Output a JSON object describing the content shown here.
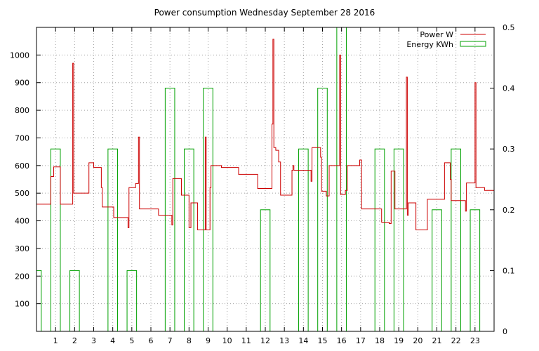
{
  "chart_data": {
    "type": "line",
    "title": "Power consumption Wednesday September 28 2016",
    "xlabel": "",
    "ylabel": "",
    "y2label": "",
    "xlim": [
      0,
      24
    ],
    "ylim": [
      0,
      1100
    ],
    "y2lim": [
      0,
      0.5
    ],
    "xticks": [
      1,
      2,
      3,
      4,
      5,
      6,
      7,
      8,
      9,
      10,
      11,
      12,
      13,
      14,
      15,
      16,
      17,
      18,
      19,
      20,
      21,
      22,
      23
    ],
    "yticks": [
      100,
      200,
      300,
      400,
      500,
      600,
      700,
      800,
      900,
      1000
    ],
    "y2ticks": [
      0,
      0.1,
      0.2,
      0.3,
      0.4,
      0.5
    ],
    "grid": true,
    "legend_position": "top-right",
    "series": [
      {
        "name": "Power W",
        "color": "#cc0000",
        "axis": "y",
        "style": "steps",
        "points": [
          [
            0.0,
            460
          ],
          [
            0.75,
            460
          ],
          [
            0.75,
            560
          ],
          [
            0.9,
            560
          ],
          [
            0.9,
            595
          ],
          [
            1.25,
            595
          ],
          [
            1.25,
            460
          ],
          [
            1.9,
            460
          ],
          [
            1.9,
            970
          ],
          [
            1.95,
            970
          ],
          [
            1.95,
            500
          ],
          [
            2.75,
            500
          ],
          [
            2.75,
            610
          ],
          [
            3.0,
            610
          ],
          [
            3.0,
            593
          ],
          [
            3.4,
            593
          ],
          [
            3.4,
            520
          ],
          [
            3.45,
            520
          ],
          [
            3.45,
            450
          ],
          [
            4.05,
            450
          ],
          [
            4.05,
            412
          ],
          [
            4.8,
            412
          ],
          [
            4.8,
            375
          ],
          [
            4.85,
            375
          ],
          [
            4.85,
            520
          ],
          [
            5.2,
            520
          ],
          [
            5.2,
            535
          ],
          [
            5.35,
            535
          ],
          [
            5.35,
            703
          ],
          [
            5.4,
            703
          ],
          [
            5.4,
            443
          ],
          [
            6.4,
            443
          ],
          [
            6.4,
            420
          ],
          [
            7.1,
            420
          ],
          [
            7.1,
            385
          ],
          [
            7.15,
            385
          ],
          [
            7.15,
            553
          ],
          [
            7.6,
            553
          ],
          [
            7.6,
            493
          ],
          [
            8.0,
            493
          ],
          [
            8.0,
            375
          ],
          [
            8.1,
            375
          ],
          [
            8.1,
            465
          ],
          [
            8.45,
            465
          ],
          [
            8.45,
            367
          ],
          [
            8.85,
            367
          ],
          [
            8.85,
            703
          ],
          [
            8.9,
            703
          ],
          [
            8.9,
            367
          ],
          [
            9.1,
            367
          ],
          [
            9.1,
            520
          ],
          [
            9.15,
            520
          ],
          [
            9.15,
            600
          ],
          [
            9.7,
            600
          ],
          [
            9.7,
            593
          ],
          [
            10.6,
            593
          ],
          [
            10.6,
            568
          ],
          [
            11.6,
            568
          ],
          [
            11.6,
            517
          ],
          [
            12.35,
            517
          ],
          [
            12.35,
            750
          ],
          [
            12.4,
            750
          ],
          [
            12.4,
            1057
          ],
          [
            12.45,
            1057
          ],
          [
            12.45,
            665
          ],
          [
            12.55,
            665
          ],
          [
            12.55,
            655
          ],
          [
            12.7,
            655
          ],
          [
            12.7,
            613
          ],
          [
            12.8,
            613
          ],
          [
            12.8,
            493
          ],
          [
            13.4,
            493
          ],
          [
            13.4,
            583
          ],
          [
            13.45,
            583
          ],
          [
            13.45,
            600
          ],
          [
            13.5,
            600
          ],
          [
            13.5,
            583
          ],
          [
            14.4,
            583
          ],
          [
            14.4,
            543
          ],
          [
            14.45,
            543
          ],
          [
            14.45,
            665
          ],
          [
            14.9,
            665
          ],
          [
            14.9,
            630
          ],
          [
            14.95,
            630
          ],
          [
            14.95,
            507
          ],
          [
            15.2,
            507
          ],
          [
            15.2,
            490
          ],
          [
            15.35,
            490
          ],
          [
            15.35,
            600
          ],
          [
            15.9,
            600
          ],
          [
            15.9,
            1000
          ],
          [
            15.95,
            1000
          ],
          [
            15.95,
            495
          ],
          [
            16.2,
            495
          ],
          [
            16.2,
            510
          ],
          [
            16.3,
            510
          ],
          [
            16.3,
            600
          ],
          [
            16.95,
            600
          ],
          [
            16.95,
            620
          ],
          [
            17.05,
            620
          ],
          [
            17.05,
            443
          ],
          [
            18.1,
            443
          ],
          [
            18.1,
            395
          ],
          [
            18.5,
            395
          ],
          [
            18.5,
            390
          ],
          [
            18.6,
            390
          ],
          [
            18.6,
            580
          ],
          [
            18.8,
            580
          ],
          [
            18.8,
            443
          ],
          [
            19.4,
            443
          ],
          [
            19.4,
            920
          ],
          [
            19.45,
            920
          ],
          [
            19.45,
            420
          ],
          [
            19.5,
            420
          ],
          [
            19.5,
            465
          ],
          [
            19.9,
            465
          ],
          [
            19.9,
            367
          ],
          [
            20.5,
            367
          ],
          [
            20.5,
            478
          ],
          [
            21.4,
            478
          ],
          [
            21.4,
            610
          ],
          [
            21.7,
            610
          ],
          [
            21.7,
            550
          ],
          [
            21.75,
            550
          ],
          [
            21.75,
            473
          ],
          [
            22.5,
            473
          ],
          [
            22.5,
            435
          ],
          [
            22.55,
            435
          ],
          [
            22.55,
            537
          ],
          [
            23.0,
            537
          ],
          [
            23.0,
            900
          ],
          [
            23.05,
            900
          ],
          [
            23.05,
            520
          ],
          [
            23.5,
            520
          ],
          [
            23.5,
            510
          ],
          [
            24.0,
            510
          ]
        ]
      },
      {
        "name": "Energy KWh",
        "color": "#00a000",
        "axis": "y2",
        "style": "boxes",
        "bars": [
          [
            0.0,
            0.25,
            0.1
          ],
          [
            0.75,
            1.25,
            0.3
          ],
          [
            1.75,
            2.25,
            0.1
          ],
          [
            3.75,
            4.25,
            0.3
          ],
          [
            4.75,
            5.25,
            0.1
          ],
          [
            6.75,
            7.25,
            0.4
          ],
          [
            7.75,
            8.25,
            0.3
          ],
          [
            8.75,
            9.25,
            0.4
          ],
          [
            11.75,
            12.25,
            0.2
          ],
          [
            13.75,
            14.25,
            0.3
          ],
          [
            14.75,
            15.25,
            0.4
          ],
          [
            15.75,
            16.25,
            0.5
          ],
          [
            17.75,
            18.25,
            0.3
          ],
          [
            18.75,
            19.25,
            0.3
          ],
          [
            20.75,
            21.25,
            0.2
          ],
          [
            21.75,
            22.25,
            0.3
          ],
          [
            22.75,
            23.25,
            0.2
          ]
        ]
      }
    ]
  }
}
